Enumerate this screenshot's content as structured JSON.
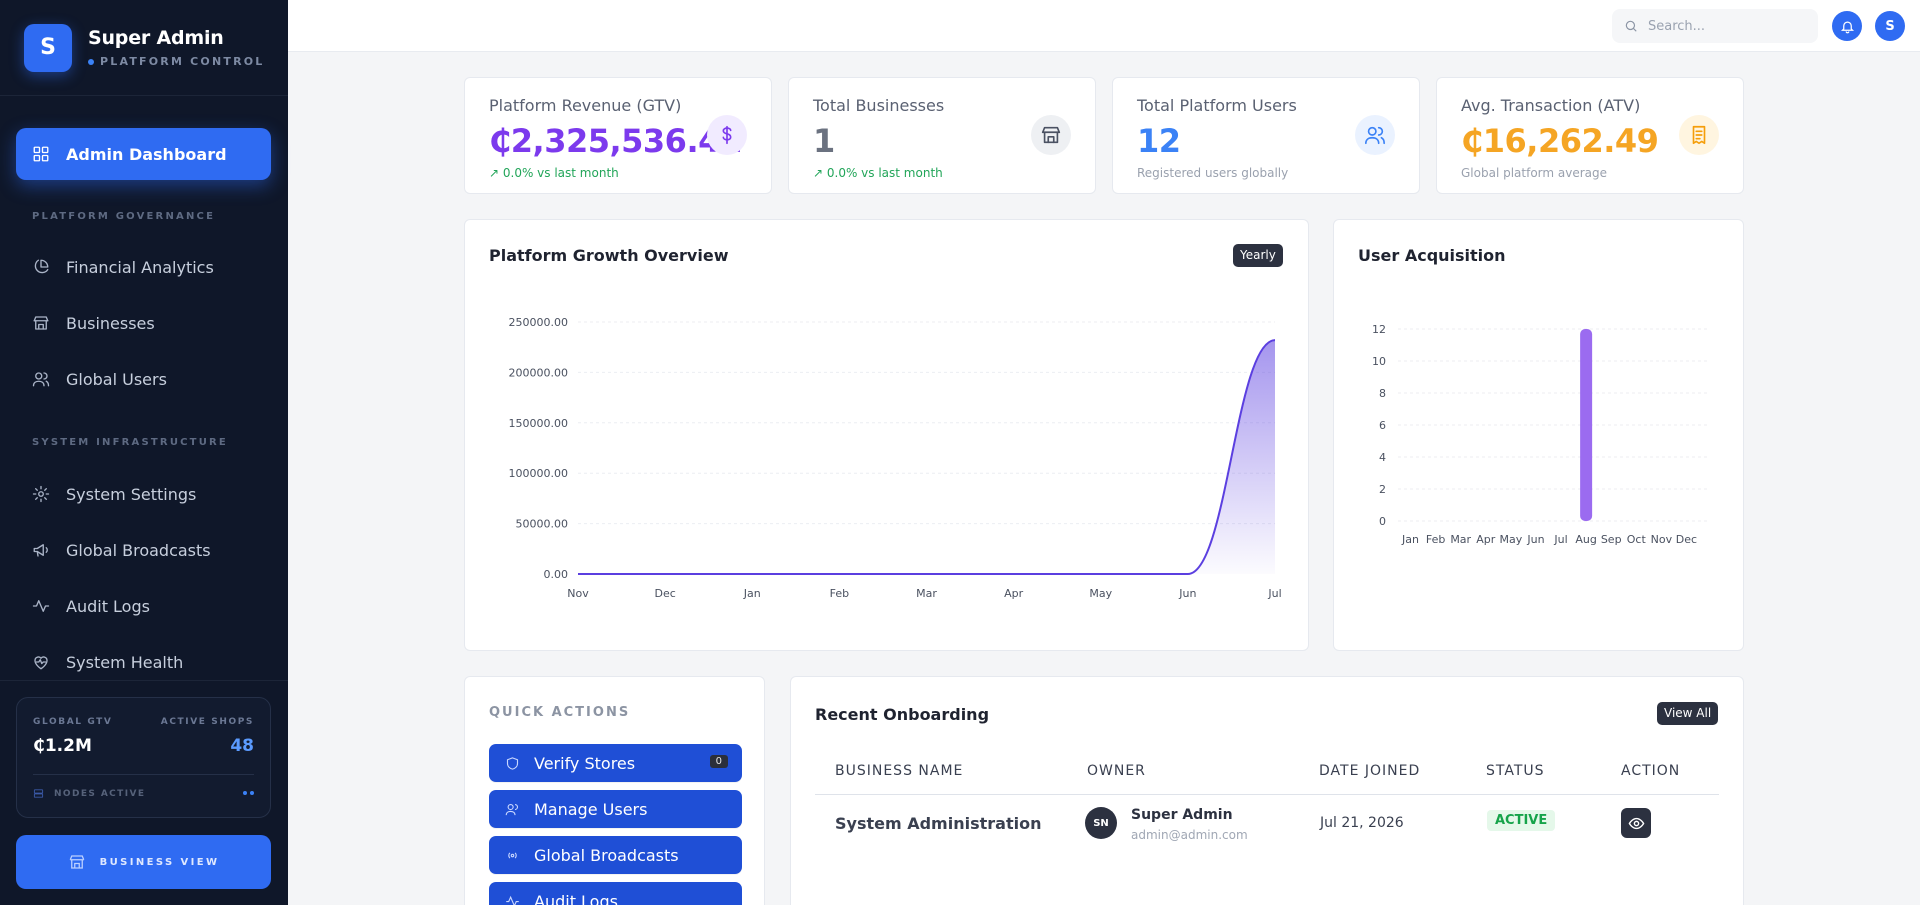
{
  "brand": {
    "initial": "S",
    "title": "Super Admin",
    "subtitle": "PLATFORM CONTROL"
  },
  "sidebar": {
    "active": {
      "label": "Admin Dashboard",
      "icon": "grid-icon"
    },
    "sections": [
      {
        "title": "PLATFORM GOVERNANCE",
        "items": [
          {
            "label": "Financial Analytics",
            "icon": "pie-chart-icon"
          },
          {
            "label": "Businesses",
            "icon": "store-icon"
          },
          {
            "label": "Global Users",
            "icon": "users-icon"
          }
        ]
      },
      {
        "title": "SYSTEM INFRASTRUCTURE",
        "items": [
          {
            "label": "System Settings",
            "icon": "gear-icon"
          },
          {
            "label": "Global Broadcasts",
            "icon": "megaphone-icon"
          },
          {
            "label": "Audit Logs",
            "icon": "activity-icon"
          },
          {
            "label": "System Health",
            "icon": "heart-pulse-icon"
          }
        ]
      }
    ],
    "stats": {
      "gtv_label": "GLOBAL GTV",
      "gtv_value": "₵1.2M",
      "shops_label": "ACTIVE SHOPS",
      "shops_value": "48",
      "nodes_label": "NODES ACTIVE"
    },
    "business_view_label": "BUSINESS VIEW"
  },
  "topbar": {
    "search_placeholder": "Search...",
    "avatar_initial": "S"
  },
  "kpis": [
    {
      "title": "Platform Revenue (GTV)",
      "value": "₵2,325,536.41",
      "sub": "0.0% vs last month",
      "color": "#7c3aed",
      "icon": "dollar-icon"
    },
    {
      "title": "Total Businesses",
      "value": "1",
      "sub": "0.0% vs last month",
      "color": "#6b7280",
      "icon": "store-icon"
    },
    {
      "title": "Total Platform Users",
      "value": "12",
      "sub": "Registered users globally",
      "color": "#3b82f6",
      "icon": "users-icon"
    },
    {
      "title": "Avg. Transaction (ATV)",
      "value": "₵16,262.49",
      "sub": "Global platform average",
      "color": "#f59e0b",
      "icon": "receipt-icon"
    }
  ],
  "growth_panel": {
    "title": "Platform Growth Overview",
    "toggle": "Yearly"
  },
  "acquisition_panel": {
    "title": "User Acquisition"
  },
  "chart_data": [
    {
      "type": "area",
      "title": "Platform Growth Overview",
      "categories": [
        "Nov",
        "Dec",
        "Jan",
        "Feb",
        "Mar",
        "Apr",
        "May",
        "Jun",
        "Jul"
      ],
      "values": [
        0,
        0,
        0,
        0,
        0,
        0,
        0,
        0,
        232000
      ],
      "y_ticks": [
        "0.00",
        "50000.00",
        "100000.00",
        "150000.00",
        "200000.00",
        "250000.00"
      ],
      "ylim": [
        0,
        250000
      ],
      "grid": true,
      "color": "#5b3fe0"
    },
    {
      "type": "bar",
      "title": "User Acquisition",
      "categories": [
        "Jan",
        "Feb",
        "Mar",
        "Apr",
        "May",
        "Jun",
        "Jul",
        "Aug",
        "Sep",
        "Oct",
        "Nov",
        "Dec"
      ],
      "values": [
        0,
        0,
        0,
        0,
        0,
        0,
        0,
        12,
        0,
        0,
        0,
        0
      ],
      "y_ticks": [
        "0",
        "2",
        "4",
        "6",
        "8",
        "10",
        "12"
      ],
      "ylim": [
        0,
        12
      ],
      "grid": true,
      "color": "#9b6bf0"
    }
  ],
  "quick_actions": {
    "title": "QUICK ACTIONS",
    "items": [
      {
        "label": "Verify Stores",
        "icon": "shield-icon",
        "badge": "0"
      },
      {
        "label": "Manage Users",
        "icon": "users-icon"
      },
      {
        "label": "Global Broadcasts",
        "icon": "broadcast-icon"
      },
      {
        "label": "Audit Logs",
        "icon": "activity-icon"
      }
    ]
  },
  "onboarding": {
    "title": "Recent Onboarding",
    "view_all": "View All",
    "columns": [
      "BUSINESS NAME",
      "OWNER",
      "DATE JOINED",
      "STATUS",
      "ACTION"
    ],
    "rows": [
      {
        "business": "System Administration",
        "owner_initials": "SN",
        "owner_name": "Super Admin",
        "owner_email": "admin@admin.com",
        "date": "Jul 21, 2026",
        "status": "ACTIVE"
      }
    ]
  }
}
